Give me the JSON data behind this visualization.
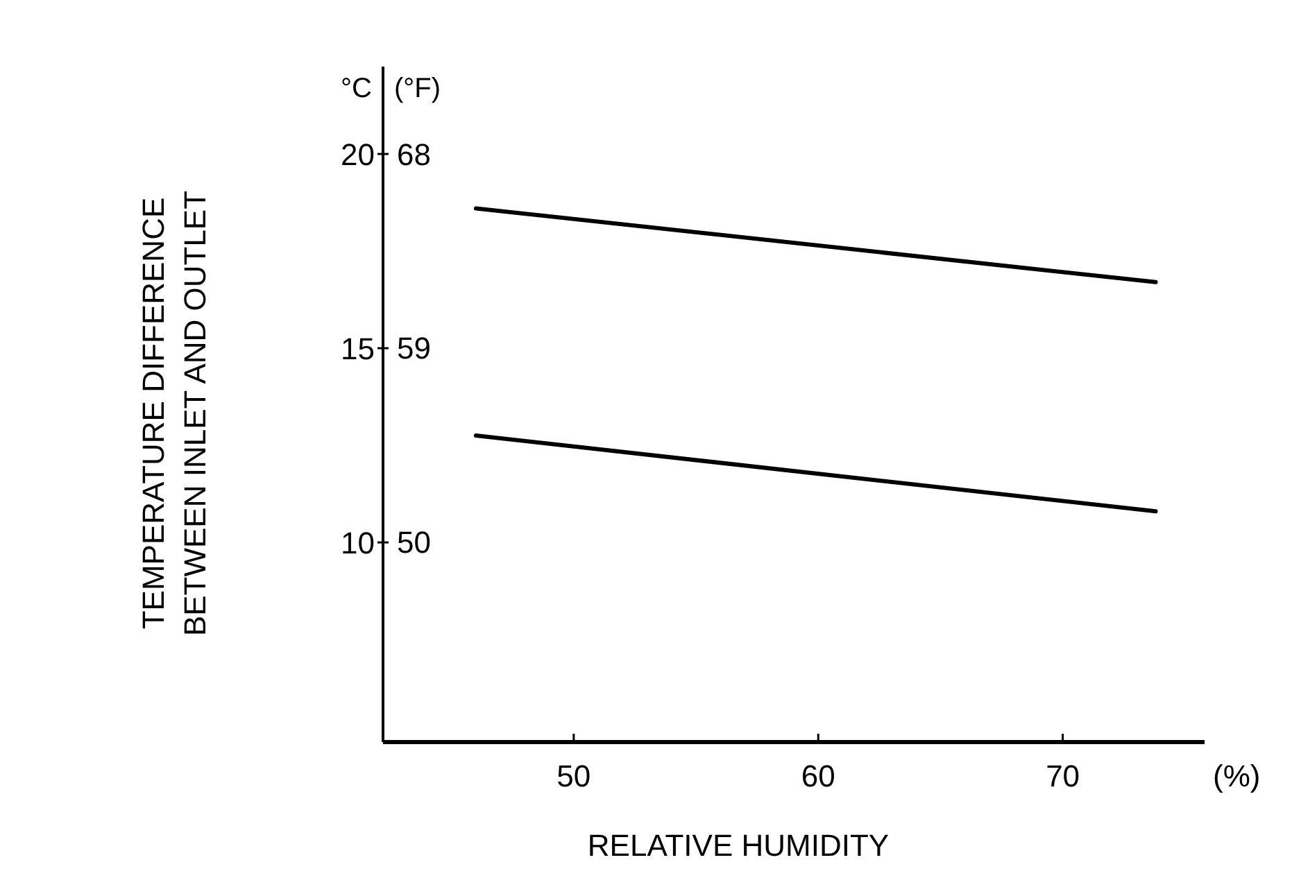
{
  "chart_data": {
    "type": "line",
    "xlabel": "RELATIVE HUMIDITY",
    "ylabel": "TEMPERATURE DIFFERENCE BETWEEN INLET AND OUTLET",
    "y2label": "(°F)",
    "annotations": [
      "°C",
      "(%)"
    ],
    "x": [
      46,
      73.8
    ],
    "series": [
      {
        "color": "#000000",
        "values": [
          18.6,
          16.7
        ]
      },
      {
        "color": "#000000",
        "values": [
          12.75,
          10.8
        ]
      }
    ],
    "xlim": [
      42.2,
      75.8
    ],
    "xticks": [
      50,
      60,
      70
    ],
    "ylim": [
      4.86,
      22.25
    ],
    "yticks": [
      10,
      15,
      20
    ],
    "y2lim": [
      40.7,
      72.05
    ],
    "y2ticks": [
      50,
      59,
      68
    ]
  }
}
